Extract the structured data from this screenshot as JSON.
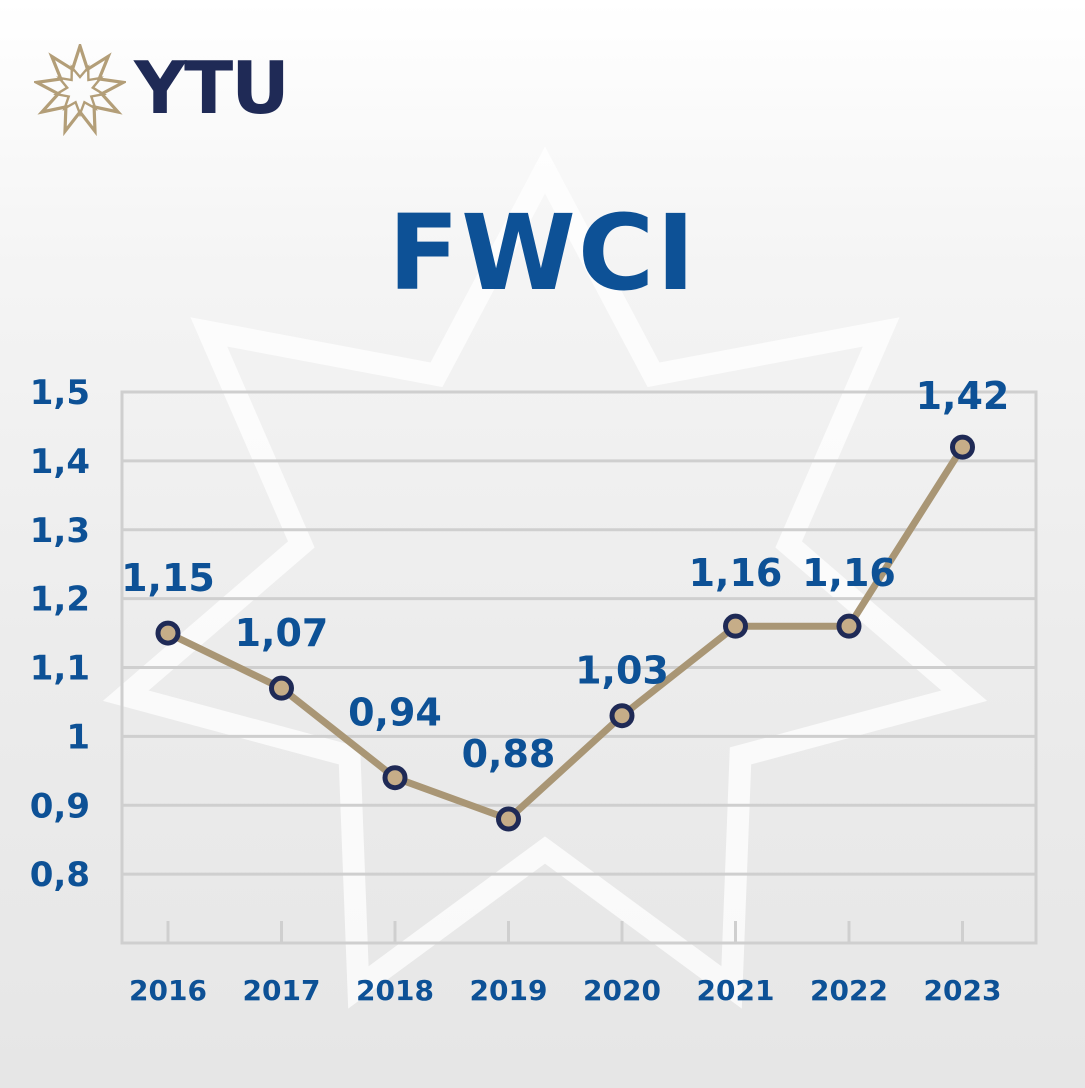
{
  "logo": {
    "text": "YTU",
    "star_color": "#b39e78",
    "text_color": "#1f2a56"
  },
  "title": "FWCI",
  "colors": {
    "title": "#0d5196",
    "line": "#a99675",
    "marker_ring": "#1f2a56",
    "marker_fill": "#c6ad88",
    "grid": "#cfcfcf",
    "label": "#0d5196"
  },
  "chart_data": {
    "type": "line",
    "title": "FWCI",
    "xlabel": "",
    "ylabel": "",
    "categories": [
      "2016",
      "2017",
      "2018",
      "2019",
      "2020",
      "2021",
      "2022",
      "2023"
    ],
    "values": [
      1.15,
      1.07,
      0.94,
      0.88,
      1.03,
      1.16,
      1.16,
      1.42
    ],
    "data_labels": [
      "1,15",
      "1,07",
      "0,94",
      "0,88",
      "1,03",
      "1,16",
      "1,16",
      "1,42"
    ],
    "y_ticks": [
      0.8,
      0.9,
      1.0,
      1.1,
      1.2,
      1.3,
      1.4,
      1.5
    ],
    "y_tick_labels": [
      "0,8",
      "0,9",
      "1",
      "1,1",
      "1,2",
      "1,3",
      "1,4",
      "1,5"
    ],
    "ylim": [
      0.7,
      1.5
    ],
    "grid": true,
    "legend": "none"
  }
}
